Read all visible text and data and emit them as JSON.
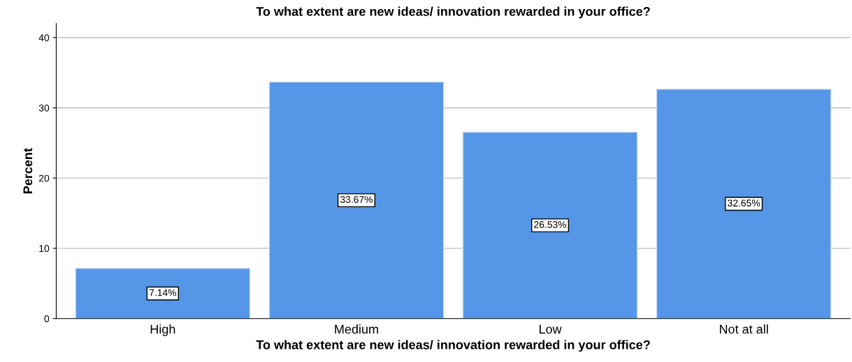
{
  "chart_data": {
    "type": "bar",
    "title": "To what extent are new ideas/ innovation rewarded in your office?",
    "xlabel": "To what extent are new ideas/ innovation rewarded in your office?",
    "ylabel": "Percent",
    "categories": [
      "High",
      "Medium",
      "Low",
      "Not at all"
    ],
    "values": [
      7.14,
      33.67,
      26.53,
      32.65
    ],
    "value_labels": [
      "7.14%",
      "33.67%",
      "26.53%",
      "32.65%"
    ],
    "color": "#5596e6",
    "ylim": [
      0,
      42
    ],
    "yticks": [
      0,
      10,
      20,
      30,
      40
    ],
    "grid": "y",
    "legend": false
  }
}
